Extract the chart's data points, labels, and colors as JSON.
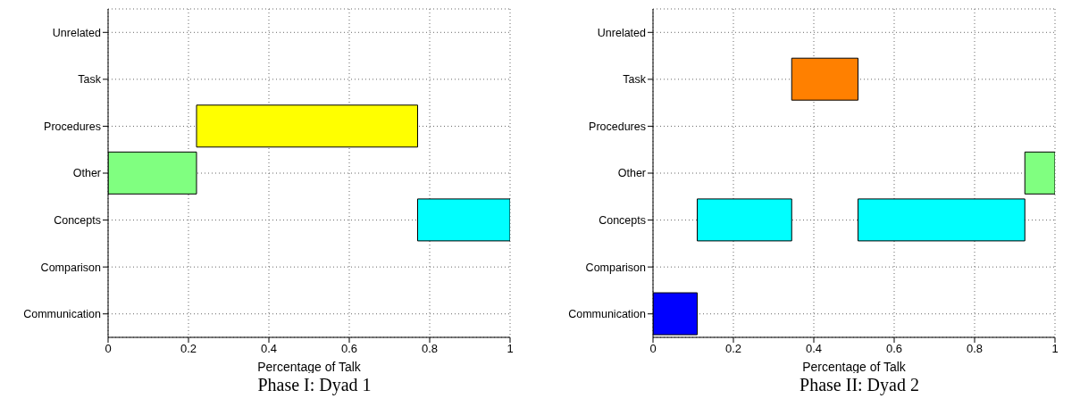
{
  "chart_data": [
    {
      "type": "bar",
      "orientation": "horizontal",
      "title": "Phase I: Dyad 1",
      "xlabel": "Percentage of Talk",
      "categories": [
        "Unrelated",
        "Task",
        "Procedures",
        "Other",
        "Concepts",
        "Comparison",
        "Communication"
      ],
      "xlim": [
        0,
        1
      ],
      "xticks": [
        0,
        0.2,
        0.4,
        0.6,
        0.8,
        1
      ],
      "grid": true,
      "series": [
        {
          "color": "#80ff80",
          "values": [
            null,
            null,
            null,
            0.22,
            null,
            null,
            null
          ],
          "base": [
            null,
            null,
            null,
            0,
            null,
            null,
            null
          ]
        },
        {
          "color": "#ffff00",
          "values": [
            null,
            null,
            0.55,
            null,
            null,
            null,
            null
          ],
          "base": [
            null,
            null,
            0.22,
            null,
            null,
            null,
            null
          ]
        },
        {
          "color": "#00ffff",
          "values": [
            null,
            null,
            null,
            null,
            0.23,
            null,
            null
          ],
          "base": [
            null,
            null,
            null,
            null,
            0.77,
            null,
            null
          ]
        }
      ]
    },
    {
      "type": "bar",
      "orientation": "horizontal",
      "title": "Phase II: Dyad 2",
      "xlabel": "Percentage of Talk",
      "categories": [
        "Unrelated",
        "Task",
        "Procedures",
        "Other",
        "Concepts",
        "Comparison",
        "Communication"
      ],
      "xlim": [
        0,
        1
      ],
      "xticks": [
        0,
        0.2,
        0.4,
        0.6,
        0.8,
        1
      ],
      "grid": true,
      "series": [
        {
          "color": "#0000ff",
          "values": [
            null,
            null,
            null,
            null,
            null,
            null,
            0.11
          ],
          "base": [
            null,
            null,
            null,
            null,
            null,
            null,
            0
          ]
        },
        {
          "color": "#00ffff",
          "values": [
            null,
            null,
            null,
            null,
            0.235,
            null,
            null
          ],
          "base": [
            null,
            null,
            null,
            null,
            0.11,
            null,
            null
          ]
        },
        {
          "color": "#ff8000",
          "values": [
            null,
            0.165,
            null,
            null,
            null,
            null,
            null
          ],
          "base": [
            null,
            0.345,
            null,
            null,
            null,
            null,
            null
          ]
        },
        {
          "color": "#00ffff",
          "values": [
            null,
            null,
            null,
            null,
            0.415,
            null,
            null
          ],
          "base": [
            null,
            null,
            null,
            null,
            0.51,
            null,
            null
          ]
        },
        {
          "color": "#80ff80",
          "values": [
            null,
            null,
            null,
            0.075,
            null,
            null,
            null
          ],
          "base": [
            null,
            null,
            null,
            0.925,
            null,
            null,
            null
          ]
        }
      ]
    }
  ]
}
